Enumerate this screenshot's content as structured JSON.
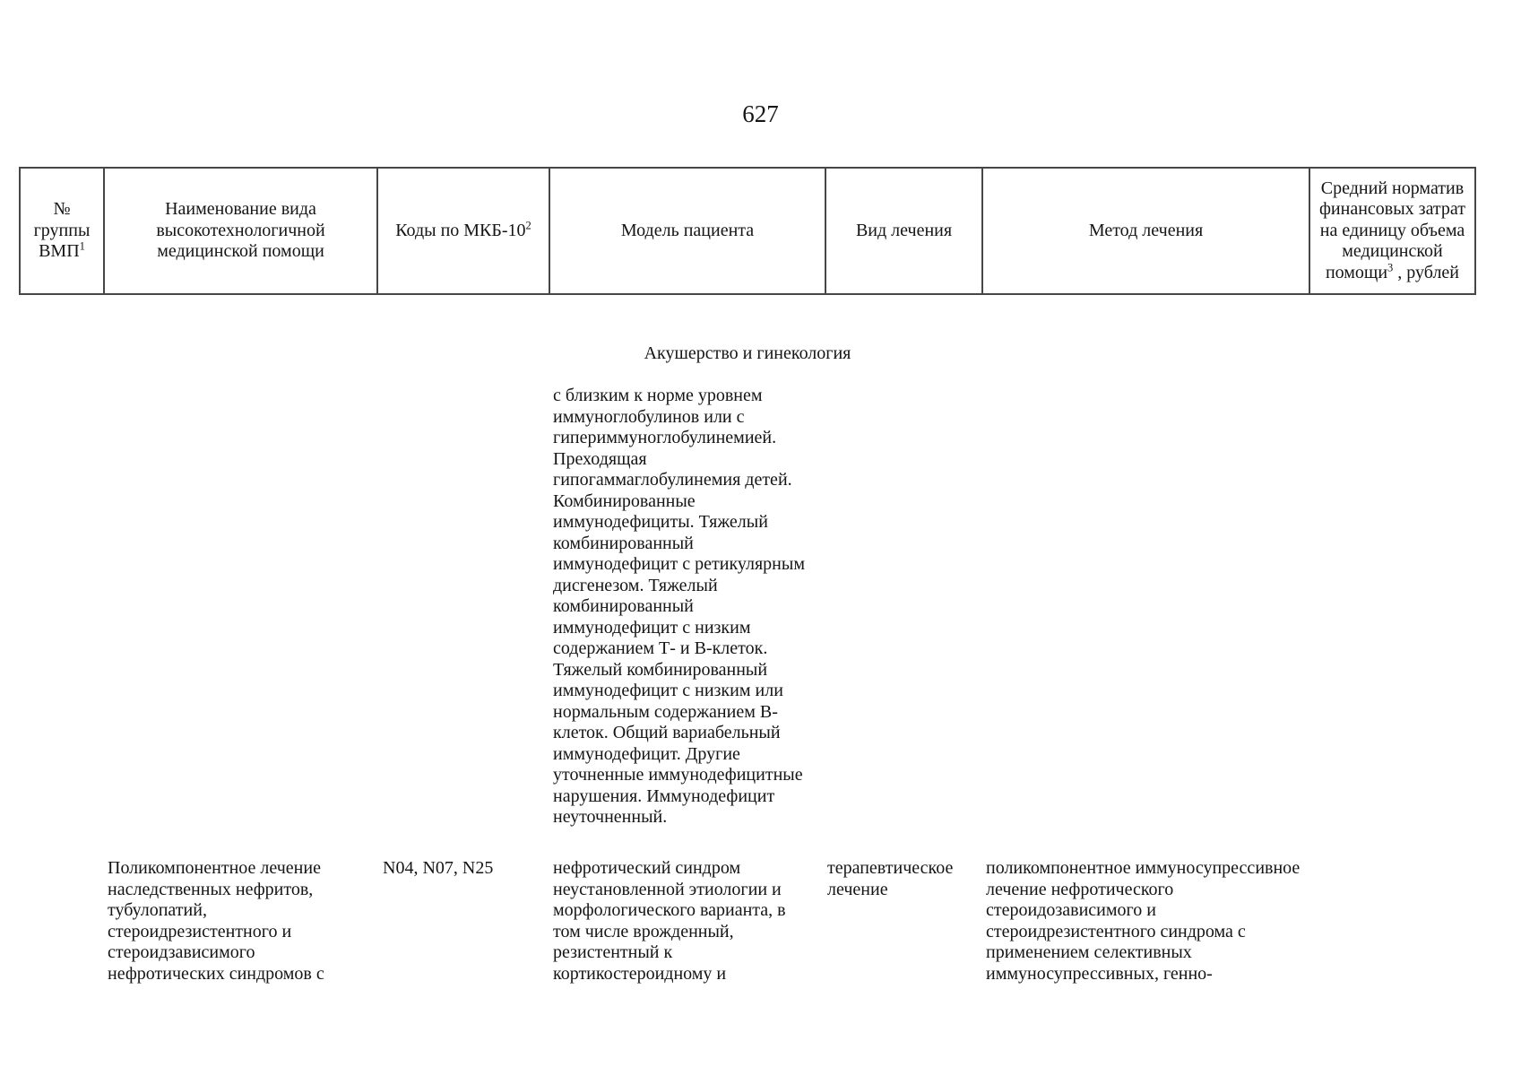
{
  "page": {
    "number": "627"
  },
  "table": {
    "headers": [
      {
        "lines": "№\nгруппы\nВМП",
        "sup": "1",
        "post": ""
      },
      {
        "lines": "Наименование вида\nвысокотехнологичной\nмедицинской помощи",
        "sup": "",
        "post": ""
      },
      {
        "lines": "Коды по МКБ-10",
        "sup": "2",
        "post": ""
      },
      {
        "lines": "Модель пациента",
        "sup": "",
        "post": ""
      },
      {
        "lines": "Вид лечения",
        "sup": "",
        "post": ""
      },
      {
        "lines": "Метод лечения",
        "sup": "",
        "post": ""
      },
      {
        "lines": "Средний норматив\nфинансовых затрат\nна единицу объема\nмедицинской\nпомощи",
        "sup": "3",
        "post": " , рублей"
      }
    ]
  },
  "section": {
    "title": "Акушерство и гинекология"
  },
  "continuation": {
    "model_text": "с близким к норме уровнем\nиммуноглобулинов или с\nгипериммуноглобулинемией.\nПреходящая\nгипогаммаглобулинемия детей.\nКомбинированные\nиммунодефициты. Тяжелый\nкомбинированный\nиммунодефицит с ретикулярным\nдисгенезом. Тяжелый\nкомбинированный\nиммунодефицит с низким\nсодержанием Т- и В-клеток.\nТяжелый комбинированный\nиммунодефицит с низким или\nнормальным содержанием В-\nклеток. Общий вариабельный\nиммунодефицит. Другие\nуточненные иммунодефицитные\nнарушения. Иммунодефицит\nнеуточненный."
  },
  "row": {
    "name": "Поликомпонентное лечение\nнаследственных нефритов,\nтубулопатий,\nстероидрезистентного и\nстероидзависимого\nнефротических синдромов с",
    "codes": "N04, N07, N25",
    "model": "нефротический синдром\nнеустановленной этиологии и\nморфологического варианта, в\nтом числе врожденный,\nрезистентный к\nкортикостероидному и",
    "treatment_type": "терапевтическое\nлечение",
    "method": "поликомпонентное иммуносупрессивное\nлечение нефротического\nстероидозависимого и\nстероидрезистентного синдрома с\nприменением селективных\nиммуносупрессивных, генно-"
  }
}
